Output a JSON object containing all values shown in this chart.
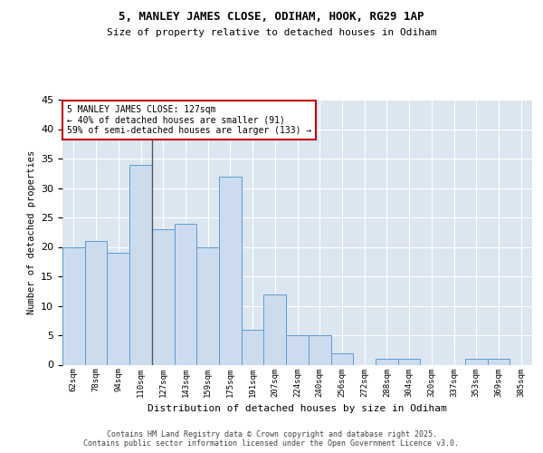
{
  "title_line1": "5, MANLEY JAMES CLOSE, ODIHAM, HOOK, RG29 1AP",
  "title_line2": "Size of property relative to detached houses in Odiham",
  "xlabel": "Distribution of detached houses by size in Odiham",
  "ylabel": "Number of detached properties",
  "categories": [
    "62sqm",
    "78sqm",
    "94sqm",
    "110sqm",
    "127sqm",
    "143sqm",
    "159sqm",
    "175sqm",
    "191sqm",
    "207sqm",
    "224sqm",
    "240sqm",
    "256sqm",
    "272sqm",
    "288sqm",
    "304sqm",
    "320sqm",
    "337sqm",
    "353sqm",
    "369sqm",
    "385sqm"
  ],
  "values": [
    20,
    21,
    19,
    34,
    23,
    24,
    20,
    32,
    6,
    12,
    5,
    5,
    2,
    0,
    1,
    1,
    0,
    0,
    1,
    1,
    0
  ],
  "property_index": 4,
  "property_size": "127sqm",
  "bar_color": "#ccdcee",
  "bar_edge_color": "#5b9bd5",
  "property_line_color": "#555555",
  "annotation_text": "5 MANLEY JAMES CLOSE: 127sqm\n← 40% of detached houses are smaller (91)\n59% of semi-detached houses are larger (133) →",
  "annotation_box_edge": "#c00000",
  "background_color": "#dce6f1",
  "ylim": [
    0,
    45
  ],
  "yticks": [
    0,
    5,
    10,
    15,
    20,
    25,
    30,
    35,
    40,
    45
  ],
  "footer_line1": "Contains HM Land Registry data © Crown copyright and database right 2025.",
  "footer_line2": "Contains public sector information licensed under the Open Government Licence v3.0."
}
